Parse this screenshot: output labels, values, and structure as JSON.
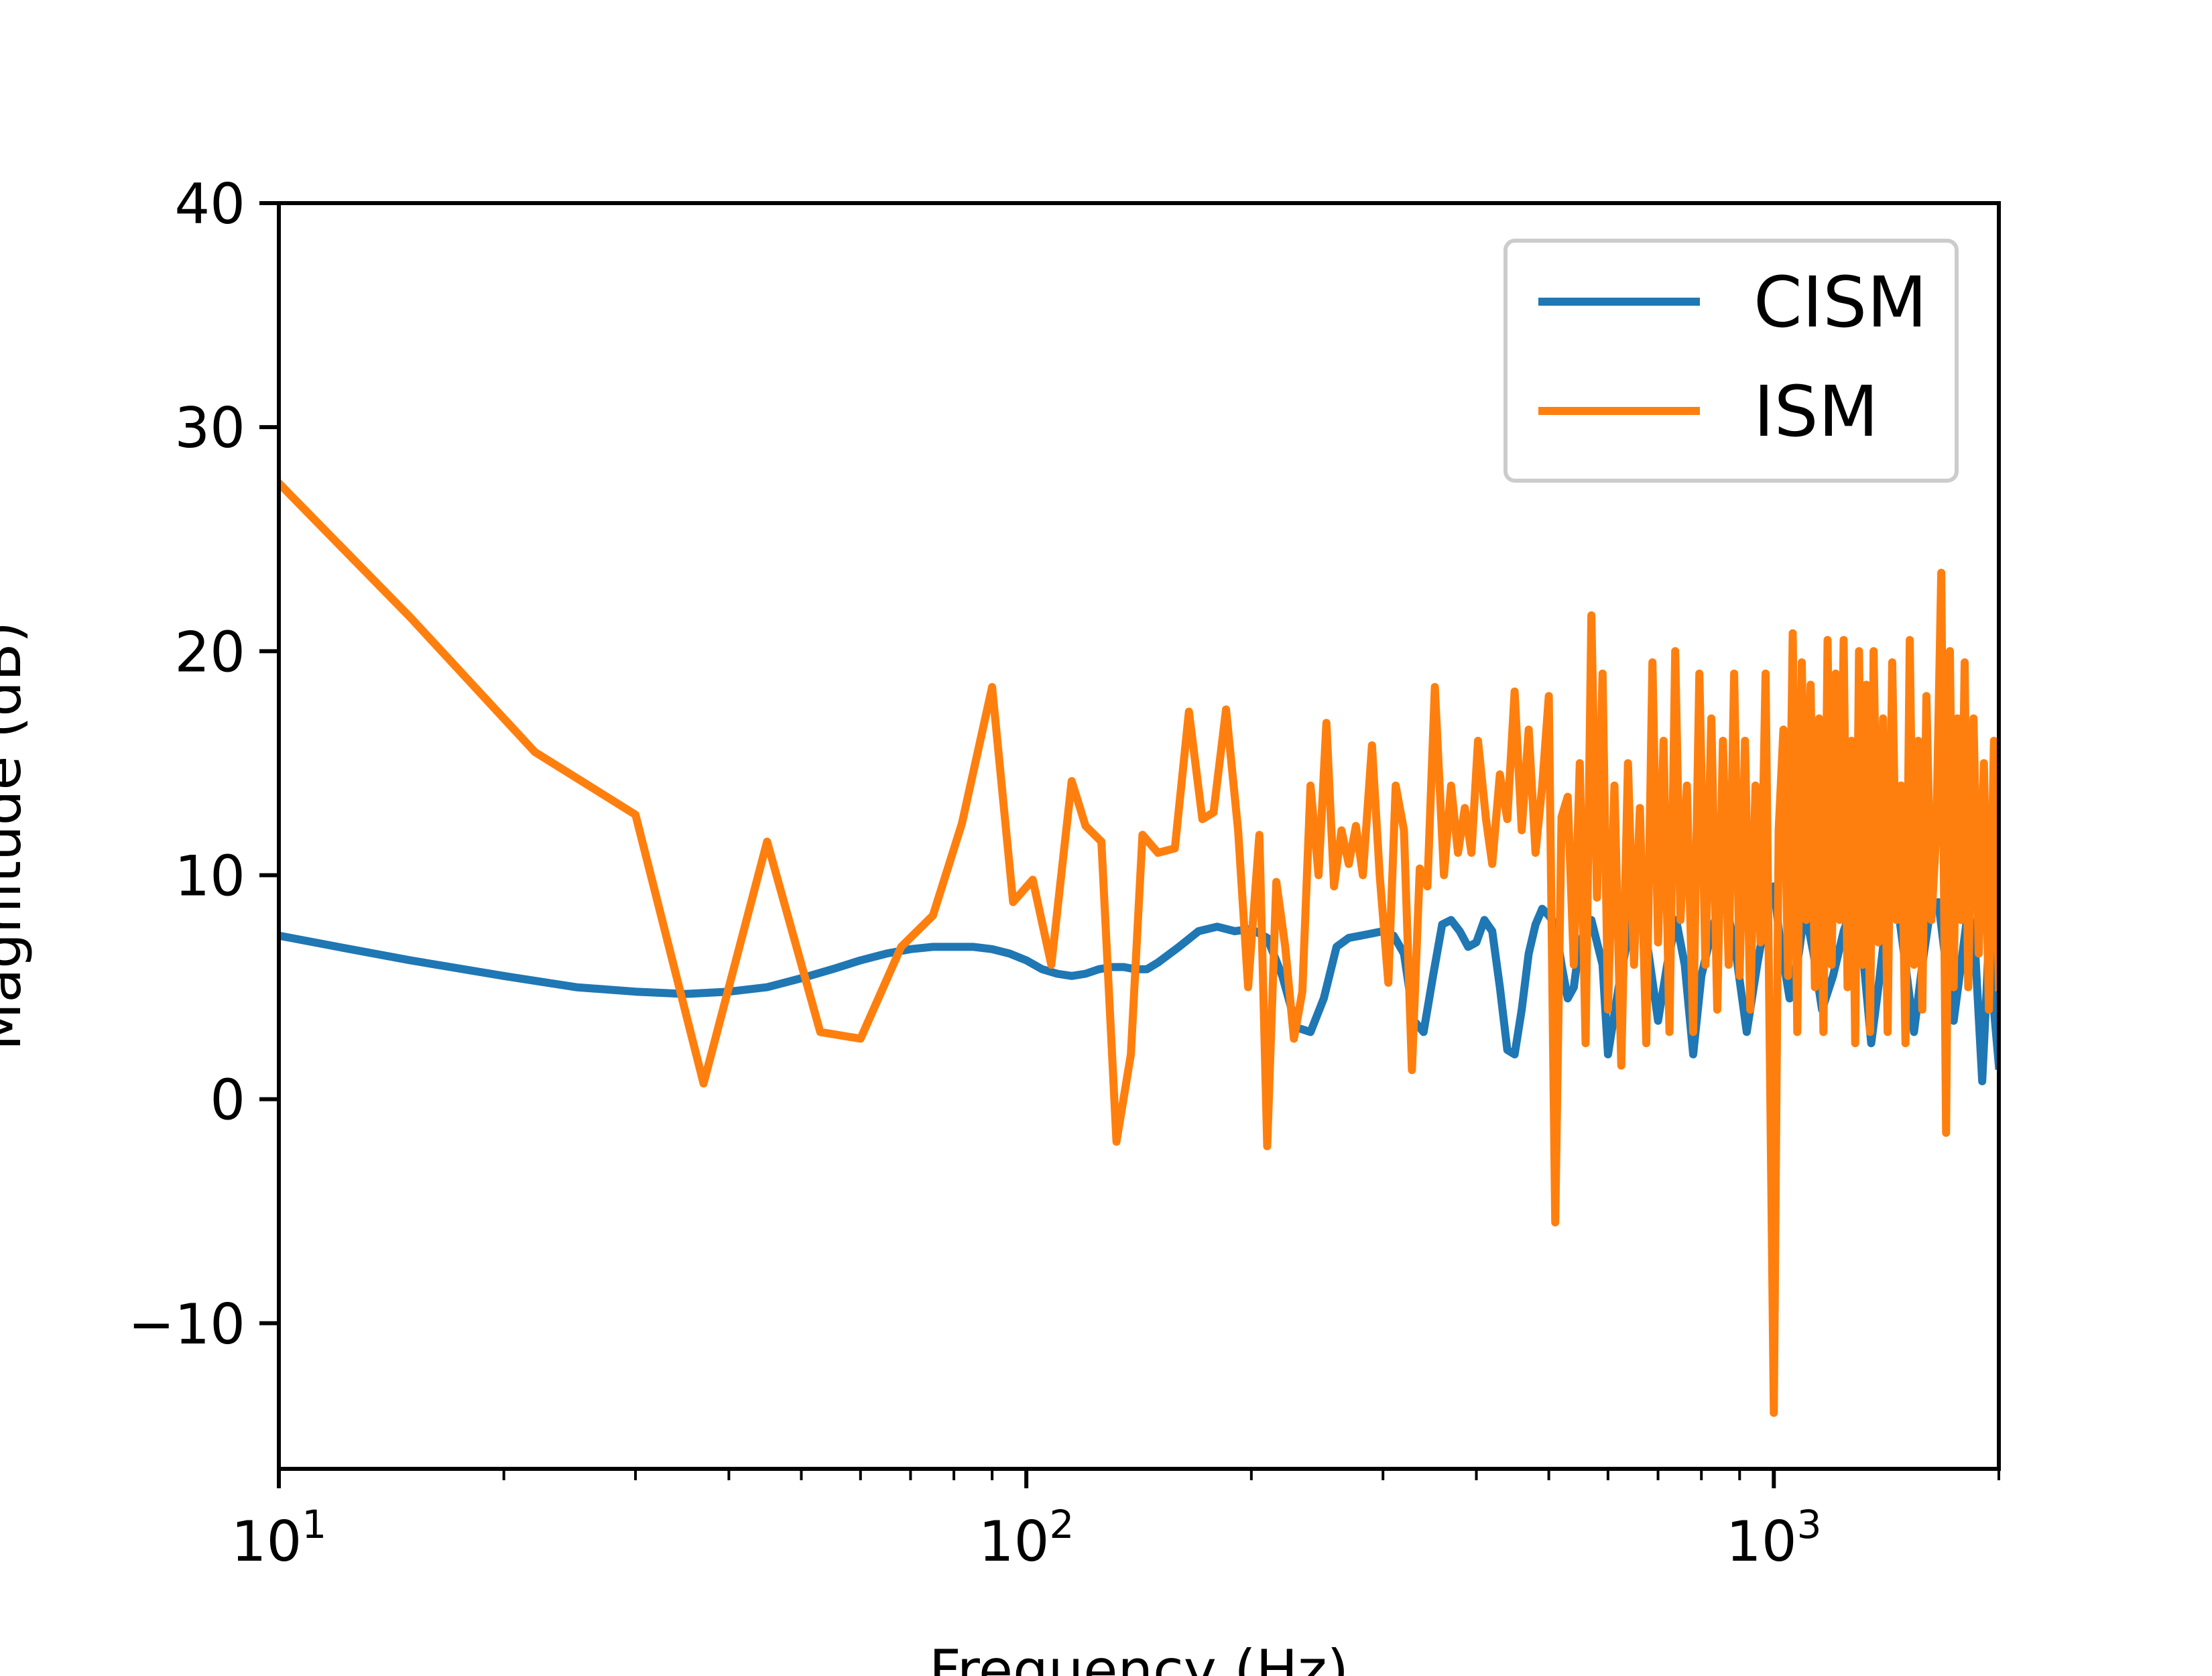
{
  "chart_data": {
    "type": "line",
    "title": "",
    "xlabel": "Frequency (Hz)",
    "ylabel": "Magnitude (dB)",
    "xscale": "log",
    "xlim": [
      10,
      2000
    ],
    "ylim": [
      -16.5,
      40
    ],
    "grid": false,
    "legend_position": "top-right",
    "x_ticks": [
      {
        "value": 10,
        "base": "10",
        "exp": "1"
      },
      {
        "value": 100,
        "base": "10",
        "exp": "2"
      },
      {
        "value": 1000,
        "base": "10",
        "exp": "3"
      }
    ],
    "y_ticks": [
      {
        "value": -10,
        "label": "−10"
      },
      {
        "value": 0,
        "label": "0"
      },
      {
        "value": 10,
        "label": "10"
      },
      {
        "value": 20,
        "label": "20"
      },
      {
        "value": 30,
        "label": "30"
      },
      {
        "value": 40,
        "label": "40"
      }
    ],
    "series": [
      {
        "name": "CISM",
        "color": "#1f77b4",
        "points": [
          [
            10,
            7.3
          ],
          [
            12,
            6.8
          ],
          [
            15,
            6.2
          ],
          [
            20,
            5.5
          ],
          [
            25,
            5.0
          ],
          [
            30,
            4.8
          ],
          [
            35,
            4.7
          ],
          [
            40,
            4.8
          ],
          [
            45,
            5.0
          ],
          [
            50,
            5.4
          ],
          [
            55,
            5.8
          ],
          [
            60,
            6.2
          ],
          [
            65,
            6.5
          ],
          [
            70,
            6.7
          ],
          [
            75,
            6.8
          ],
          [
            80,
            6.8
          ],
          [
            85,
            6.8
          ],
          [
            90,
            6.7
          ],
          [
            95,
            6.5
          ],
          [
            100,
            6.2
          ],
          [
            105,
            5.8
          ],
          [
            110,
            5.6
          ],
          [
            115,
            5.5
          ],
          [
            120,
            5.6
          ],
          [
            125,
            5.8
          ],
          [
            130,
            5.9
          ],
          [
            135,
            5.9
          ],
          [
            140,
            5.8
          ],
          [
            145,
            5.8
          ],
          [
            150,
            6.1
          ],
          [
            160,
            6.8
          ],
          [
            170,
            7.5
          ],
          [
            180,
            7.7
          ],
          [
            190,
            7.5
          ],
          [
            200,
            7.6
          ],
          [
            210,
            7.2
          ],
          [
            220,
            5.5
          ],
          [
            230,
            3.2
          ],
          [
            240,
            3.0
          ],
          [
            250,
            4.5
          ],
          [
            260,
            6.8
          ],
          [
            270,
            7.2
          ],
          [
            280,
            7.3
          ],
          [
            290,
            7.4
          ],
          [
            300,
            7.5
          ],
          [
            310,
            7.3
          ],
          [
            320,
            6.5
          ],
          [
            330,
            3.5
          ],
          [
            340,
            3.0
          ],
          [
            350,
            5.5
          ],
          [
            360,
            7.8
          ],
          [
            370,
            8.0
          ],
          [
            380,
            7.5
          ],
          [
            390,
            6.8
          ],
          [
            400,
            7.0
          ],
          [
            410,
            8.0
          ],
          [
            420,
            7.5
          ],
          [
            430,
            5.0
          ],
          [
            440,
            2.2
          ],
          [
            450,
            2.0
          ],
          [
            460,
            4.0
          ],
          [
            470,
            6.5
          ],
          [
            480,
            7.8
          ],
          [
            490,
            8.5
          ],
          [
            500,
            8.2
          ],
          [
            510,
            7.8
          ],
          [
            520,
            6.0
          ],
          [
            530,
            4.5
          ],
          [
            540,
            5.0
          ],
          [
            550,
            7.0
          ],
          [
            570,
            8.0
          ],
          [
            590,
            6.0
          ],
          [
            600,
            2.0
          ],
          [
            620,
            5.0
          ],
          [
            640,
            7.5
          ],
          [
            660,
            9.0
          ],
          [
            680,
            6.5
          ],
          [
            700,
            3.5
          ],
          [
            720,
            6.0
          ],
          [
            740,
            8.0
          ],
          [
            760,
            6.0
          ],
          [
            780,
            2.0
          ],
          [
            800,
            5.5
          ],
          [
            830,
            7.8
          ],
          [
            860,
            9.0
          ],
          [
            890,
            6.5
          ],
          [
            920,
            3.0
          ],
          [
            950,
            6.0
          ],
          [
            980,
            8.5
          ],
          [
            1000,
            9.5
          ],
          [
            1020,
            7.0
          ],
          [
            1050,
            4.5
          ],
          [
            1080,
            6.5
          ],
          [
            1100,
            8.5
          ],
          [
            1130,
            6.5
          ],
          [
            1160,
            4.0
          ],
          [
            1200,
            5.5
          ],
          [
            1240,
            7.5
          ],
          [
            1280,
            8.8
          ],
          [
            1320,
            6.0
          ],
          [
            1350,
            2.5
          ],
          [
            1380,
            5.0
          ],
          [
            1420,
            8.5
          ],
          [
            1460,
            9.0
          ],
          [
            1500,
            6.0
          ],
          [
            1540,
            3.0
          ],
          [
            1580,
            6.0
          ],
          [
            1620,
            8.5
          ],
          [
            1660,
            8.8
          ],
          [
            1700,
            6.0
          ],
          [
            1740,
            3.5
          ],
          [
            1780,
            6.0
          ],
          [
            1820,
            8.5
          ],
          [
            1860,
            6.5
          ],
          [
            1900,
            0.8
          ],
          [
            1930,
            5.5
          ],
          [
            1950,
            9.0
          ],
          [
            1970,
            4.0
          ],
          [
            2000,
            1.5
          ]
        ]
      },
      {
        "name": "ISM",
        "color": "#ff7f0e",
        "points": [
          [
            10,
            27.5
          ],
          [
            15,
            21.5
          ],
          [
            22,
            15.5
          ],
          [
            30,
            12.7
          ],
          [
            37,
            0.7
          ],
          [
            45,
            11.5
          ],
          [
            53,
            3.0
          ],
          [
            60,
            2.7
          ],
          [
            68,
            6.8
          ],
          [
            75,
            8.2
          ],
          [
            82,
            12.3
          ],
          [
            90,
            18.4
          ],
          [
            96,
            8.8
          ],
          [
            102,
            9.8
          ],
          [
            108,
            6.0
          ],
          [
            115,
            14.2
          ],
          [
            120,
            12.2
          ],
          [
            126,
            11.5
          ],
          [
            132,
            -1.9
          ],
          [
            138,
            2.0
          ],
          [
            143,
            11.8
          ],
          [
            150,
            11.0
          ],
          [
            158,
            11.2
          ],
          [
            165,
            17.3
          ],
          [
            172,
            12.5
          ],
          [
            178,
            12.8
          ],
          [
            185,
            17.4
          ],
          [
            192,
            12.0
          ],
          [
            198,
            5.0
          ],
          [
            205,
            11.8
          ],
          [
            210,
            -2.1
          ],
          [
            216,
            9.7
          ],
          [
            222,
            6.8
          ],
          [
            228,
            2.7
          ],
          [
            234,
            4.8
          ],
          [
            240,
            14.0
          ],
          [
            246,
            10.0
          ],
          [
            252,
            16.8
          ],
          [
            258,
            9.5
          ],
          [
            264,
            12.0
          ],
          [
            270,
            10.5
          ],
          [
            276,
            12.2
          ],
          [
            282,
            10.0
          ],
          [
            290,
            15.8
          ],
          [
            297,
            10.0
          ],
          [
            305,
            5.2
          ],
          [
            312,
            14.0
          ],
          [
            320,
            12.0
          ],
          [
            328,
            1.3
          ],
          [
            336,
            10.3
          ],
          [
            344,
            9.5
          ],
          [
            352,
            18.4
          ],
          [
            362,
            10.0
          ],
          [
            370,
            14.0
          ],
          [
            378,
            11.0
          ],
          [
            386,
            13.0
          ],
          [
            394,
            11.0
          ],
          [
            402,
            16.0
          ],
          [
            412,
            12.5
          ],
          [
            420,
            10.5
          ],
          [
            430,
            14.5
          ],
          [
            440,
            12.5
          ],
          [
            450,
            18.2
          ],
          [
            460,
            12.0
          ],
          [
            470,
            16.5
          ],
          [
            480,
            11.0
          ],
          [
            490,
            14.0
          ],
          [
            500,
            18.0
          ],
          [
            510,
            -5.5
          ],
          [
            520,
            12.6
          ],
          [
            530,
            13.5
          ],
          [
            540,
            6.0
          ],
          [
            550,
            15.0
          ],
          [
            560,
            2.5
          ],
          [
            570,
            21.6
          ],
          [
            580,
            9.0
          ],
          [
            590,
            19.0
          ],
          [
            600,
            4.0
          ],
          [
            612,
            14.0
          ],
          [
            625,
            1.5
          ],
          [
            638,
            15.0
          ],
          [
            650,
            6.0
          ],
          [
            662,
            13.0
          ],
          [
            675,
            2.5
          ],
          [
            688,
            19.5
          ],
          [
            700,
            7.0
          ],
          [
            712,
            16.0
          ],
          [
            725,
            3.0
          ],
          [
            738,
            20.0
          ],
          [
            750,
            8.0
          ],
          [
            765,
            14.0
          ],
          [
            780,
            3.0
          ],
          [
            795,
            19.0
          ],
          [
            810,
            6.0
          ],
          [
            825,
            17.0
          ],
          [
            840,
            4.0
          ],
          [
            855,
            16.0
          ],
          [
            870,
            6.0
          ],
          [
            885,
            19.0
          ],
          [
            900,
            5.5
          ],
          [
            915,
            16.0
          ],
          [
            930,
            4.0
          ],
          [
            945,
            14.0
          ],
          [
            960,
            7.0
          ],
          [
            975,
            19.0
          ],
          [
            1000,
            -14.0
          ],
          [
            1015,
            12.0
          ],
          [
            1030,
            16.5
          ],
          [
            1045,
            5.5
          ],
          [
            1060,
            20.8
          ],
          [
            1075,
            3.0
          ],
          [
            1090,
            19.5
          ],
          [
            1105,
            8.0
          ],
          [
            1120,
            18.5
          ],
          [
            1135,
            5.0
          ],
          [
            1150,
            17.0
          ],
          [
            1165,
            3.0
          ],
          [
            1180,
            20.5
          ],
          [
            1195,
            6.0
          ],
          [
            1210,
            19.0
          ],
          [
            1225,
            8.0
          ],
          [
            1240,
            20.5
          ],
          [
            1255,
            5.0
          ],
          [
            1270,
            16.0
          ],
          [
            1285,
            2.5
          ],
          [
            1300,
            20.0
          ],
          [
            1315,
            6.0
          ],
          [
            1330,
            18.5
          ],
          [
            1345,
            3.0
          ],
          [
            1360,
            20.0
          ],
          [
            1380,
            7.0
          ],
          [
            1400,
            17.0
          ],
          [
            1420,
            3.0
          ],
          [
            1440,
            19.5
          ],
          [
            1460,
            8.0
          ],
          [
            1480,
            14.0
          ],
          [
            1500,
            2.5
          ],
          [
            1520,
            20.5
          ],
          [
            1540,
            6.0
          ],
          [
            1560,
            16.0
          ],
          [
            1580,
            4.0
          ],
          [
            1600,
            18.0
          ],
          [
            1625,
            8.0
          ],
          [
            1650,
            12.0
          ],
          [
            1675,
            23.5
          ],
          [
            1700,
            -1.5
          ],
          [
            1720,
            20.0
          ],
          [
            1740,
            5.0
          ],
          [
            1760,
            17.0
          ],
          [
            1780,
            8.0
          ],
          [
            1800,
            19.5
          ],
          [
            1820,
            5.0
          ],
          [
            1850,
            17.0
          ],
          [
            1880,
            6.5
          ],
          [
            1910,
            15.0
          ],
          [
            1940,
            4.0
          ],
          [
            1970,
            16.0
          ],
          [
            2000,
            5.0
          ]
        ]
      }
    ]
  }
}
